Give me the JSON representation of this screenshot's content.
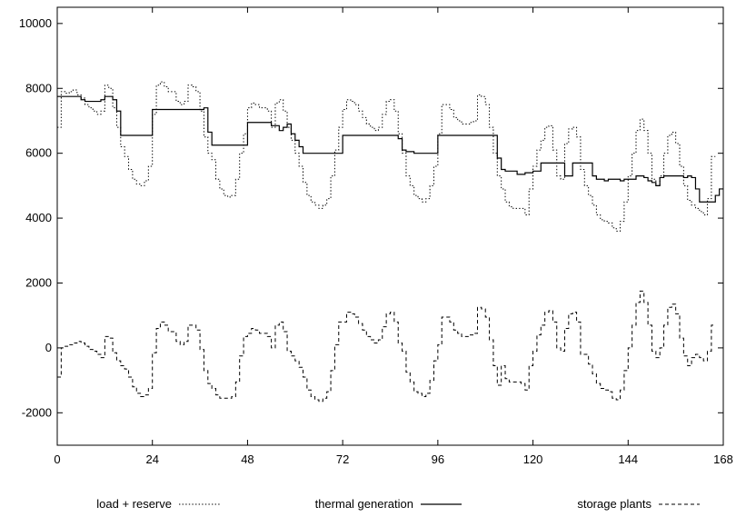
{
  "chart_data": {
    "type": "line",
    "title": "",
    "xlabel": "",
    "ylabel": "",
    "xlim": [
      0,
      168
    ],
    "ylim": [
      -3000,
      10500
    ],
    "x_ticks": [
      0,
      24,
      48,
      72,
      96,
      120,
      144,
      168
    ],
    "y_ticks": [
      -2000,
      0,
      2000,
      4000,
      6000,
      8000,
      10000
    ],
    "grid": false,
    "legend_position": "bottom",
    "series": [
      {
        "name": "load + reserve",
        "style": "dotted",
        "color": "#000000",
        "values": [
          6800,
          7900,
          7850,
          7900,
          7950,
          7800,
          7700,
          7500,
          7400,
          7300,
          7200,
          7300,
          8100,
          8000,
          7400,
          6800,
          6200,
          5900,
          5500,
          5200,
          5050,
          5000,
          5150,
          5600,
          7200,
          8100,
          8200,
          8050,
          7900,
          7900,
          7600,
          7500,
          7600,
          8100,
          8050,
          7900,
          7300,
          6500,
          6000,
          5800,
          5200,
          4900,
          4700,
          4650,
          4700,
          5200,
          6000,
          6600,
          7400,
          7550,
          7500,
          7400,
          7400,
          7300,
          6800,
          7550,
          7650,
          7300,
          6800,
          6400,
          6000,
          5600,
          5100,
          4700,
          4500,
          4400,
          4300,
          4400,
          4600,
          5300,
          6100,
          6800,
          7350,
          7650,
          7600,
          7500,
          7300,
          7100,
          6900,
          6800,
          6700,
          6800,
          7200,
          7600,
          7650,
          7300,
          6600,
          6000,
          5300,
          5000,
          4700,
          4600,
          4500,
          4600,
          5000,
          5600,
          6600,
          7500,
          7500,
          7350,
          7100,
          7000,
          6900,
          6900,
          6950,
          7000,
          7800,
          7750,
          7500,
          6800,
          6000,
          5300,
          4900,
          4500,
          4350,
          4300,
          4300,
          4300,
          4100,
          4900,
          5600,
          6100,
          6400,
          6800,
          6850,
          6100,
          5300,
          5200,
          6300,
          6750,
          6800,
          6500,
          5500,
          5000,
          4700,
          4400,
          4100,
          3950,
          3900,
          3850,
          3700,
          3600,
          3900,
          4500,
          5300,
          6000,
          6700,
          7050,
          6700,
          6000,
          5200,
          5000,
          5300,
          6000,
          6550,
          6650,
          6300,
          5600,
          5000,
          4550,
          4400,
          4300,
          4200,
          4100,
          4600,
          5900
        ]
      },
      {
        "name": "thermal generation",
        "style": "solid",
        "color": "#000000",
        "values": [
          7750,
          7750,
          7750,
          7750,
          7750,
          7750,
          7650,
          7600,
          7600,
          7600,
          7600,
          7650,
          7750,
          7750,
          7650,
          7300,
          6550,
          6550,
          6550,
          6550,
          6550,
          6550,
          6550,
          6550,
          7350,
          7350,
          7350,
          7350,
          7350,
          7350,
          7350,
          7350,
          7350,
          7350,
          7350,
          7350,
          7350,
          7400,
          6650,
          6250,
          6250,
          6250,
          6250,
          6250,
          6250,
          6250,
          6250,
          6250,
          6950,
          6950,
          6950,
          6950,
          6950,
          6950,
          6850,
          6850,
          6700,
          6800,
          6900,
          6600,
          6400,
          6200,
          6000,
          6000,
          6000,
          6000,
          6000,
          6000,
          6000,
          6000,
          6000,
          6000,
          6550,
          6550,
          6550,
          6550,
          6550,
          6550,
          6550,
          6550,
          6550,
          6550,
          6550,
          6550,
          6550,
          6550,
          6450,
          6100,
          6050,
          6050,
          6000,
          6000,
          6000,
          6000,
          6000,
          6000,
          6550,
          6550,
          6550,
          6550,
          6550,
          6550,
          6550,
          6550,
          6550,
          6550,
          6550,
          6550,
          6550,
          6550,
          6550,
          5850,
          5500,
          5450,
          5450,
          5450,
          5350,
          5350,
          5400,
          5400,
          5450,
          5450,
          5700,
          5700,
          5700,
          5700,
          5700,
          5700,
          5300,
          5300,
          5700,
          5700,
          5700,
          5700,
          5700,
          5300,
          5200,
          5200,
          5150,
          5200,
          5200,
          5200,
          5150,
          5200,
          5200,
          5200,
          5300,
          5300,
          5250,
          5150,
          5100,
          5000,
          5250,
          5300,
          5300,
          5300,
          5300,
          5300,
          5250,
          5300,
          5250,
          4900,
          4500,
          4500,
          4500,
          4500,
          4700,
          4900
        ]
      },
      {
        "name": "storage plants",
        "style": "dashed",
        "color": "#000000",
        "values": [
          -900,
          0,
          50,
          100,
          150,
          200,
          150,
          50,
          -50,
          -100,
          -200,
          -300,
          350,
          300,
          -150,
          -400,
          -550,
          -650,
          -900,
          -1200,
          -1400,
          -1500,
          -1450,
          -1250,
          -150,
          600,
          800,
          700,
          500,
          500,
          200,
          100,
          200,
          700,
          700,
          550,
          -50,
          -700,
          -1100,
          -1250,
          -1450,
          -1550,
          -1550,
          -1550,
          -1500,
          -1050,
          -250,
          350,
          450,
          600,
          550,
          450,
          450,
          350,
          0,
          700,
          800,
          500,
          -100,
          -250,
          -400,
          -600,
          -900,
          -1300,
          -1500,
          -1600,
          -1650,
          -1550,
          -1350,
          -700,
          100,
          800,
          800,
          1100,
          1050,
          950,
          750,
          550,
          350,
          250,
          150,
          250,
          650,
          1050,
          1100,
          800,
          150,
          -100,
          -750,
          -1050,
          -1350,
          -1400,
          -1500,
          -1400,
          -1000,
          -400,
          100,
          950,
          950,
          800,
          550,
          450,
          350,
          350,
          400,
          450,
          1250,
          1200,
          950,
          250,
          -550,
          -1150,
          -550,
          -950,
          -1050,
          -1050,
          -1050,
          -1100,
          -1300,
          -550,
          -100,
          400,
          700,
          1100,
          1150,
          800,
          0,
          -100,
          600,
          1050,
          1100,
          800,
          -200,
          -200,
          -500,
          -800,
          -1100,
          -1250,
          -1300,
          -1350,
          -1550,
          -1600,
          -1300,
          -700,
          0,
          700,
          1400,
          1750,
          1400,
          700,
          -100,
          -300,
          0,
          700,
          1250,
          1350,
          1050,
          300,
          -250,
          -550,
          -300,
          -200,
          -300,
          -400,
          -100,
          700
        ]
      }
    ]
  }
}
